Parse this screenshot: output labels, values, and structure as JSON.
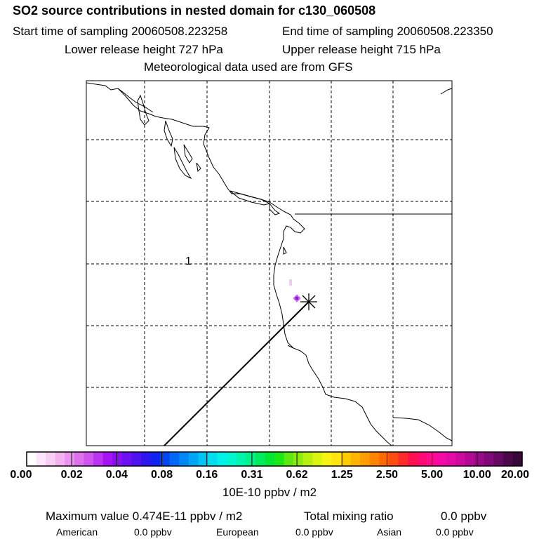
{
  "header": {
    "title": "SO2 source contributions in nested domain for c130_060508",
    "start_sampling": "Start time of sampling 20060508.223258",
    "end_sampling": "End time of sampling 20060508.223350",
    "lower_release": "Lower release height  727 hPa",
    "upper_release": "Upper release height  715 hPa",
    "met_data": "Meteorological data used are from GFS"
  },
  "map": {
    "contour_label": "1",
    "source_marker": "asterisk-icon"
  },
  "colorbar": {
    "labels": [
      "0.00",
      "0.02",
      "0.04",
      "0.08",
      "0.16",
      "0.31",
      "0.62",
      "1.25",
      "2.50",
      "5.00",
      "10.00",
      "20.00"
    ],
    "colors": [
      "#ffffff",
      "#fde6fb",
      "#f8cdf6",
      "#f2b2f0",
      "#ea94ee",
      "#de72ec",
      "#cf55ee",
      "#bd33f2",
      "#a713f4",
      "#8a0ff4",
      "#6c12f2",
      "#4e14f0",
      "#2f15ee",
      "#1023f0",
      "#0046f4",
      "#0068f6",
      "#0088f6",
      "#00a6f6",
      "#00c4f4",
      "#00dff2",
      "#00f2ea",
      "#00f6cf",
      "#00f6ac",
      "#00f288",
      "#00ec5c",
      "#00e832",
      "#1ee814",
      "#5ee810",
      "#8eec10",
      "#b8f010",
      "#dcf410",
      "#f6f410",
      "#ffe410",
      "#ffcc00",
      "#ffb400",
      "#ff9c00",
      "#ff8400",
      "#ff6a00",
      "#ff4c10",
      "#ff2a2a",
      "#ff1050",
      "#ff0a74",
      "#ff0a90",
      "#f60aa6",
      "#e40aa8",
      "#cc0aa0",
      "#b20a94",
      "#980a88",
      "#7e0a78",
      "#640a62",
      "#4a0a4a",
      "#360a38"
    ],
    "unit": "10E-10 ppbv / m2"
  },
  "stats": {
    "max_value": "Maximum value  0.474E-11 ppbv / m2",
    "total_mixing": "Total mixing ratio",
    "total_mixing_value": "0.0 ppbv",
    "american_label": "American",
    "american_value": "0.0 ppbv",
    "european_label": "European",
    "european_value": "0.0 ppbv",
    "asian_label": "Asian",
    "asian_value": "0.0 ppbv"
  }
}
